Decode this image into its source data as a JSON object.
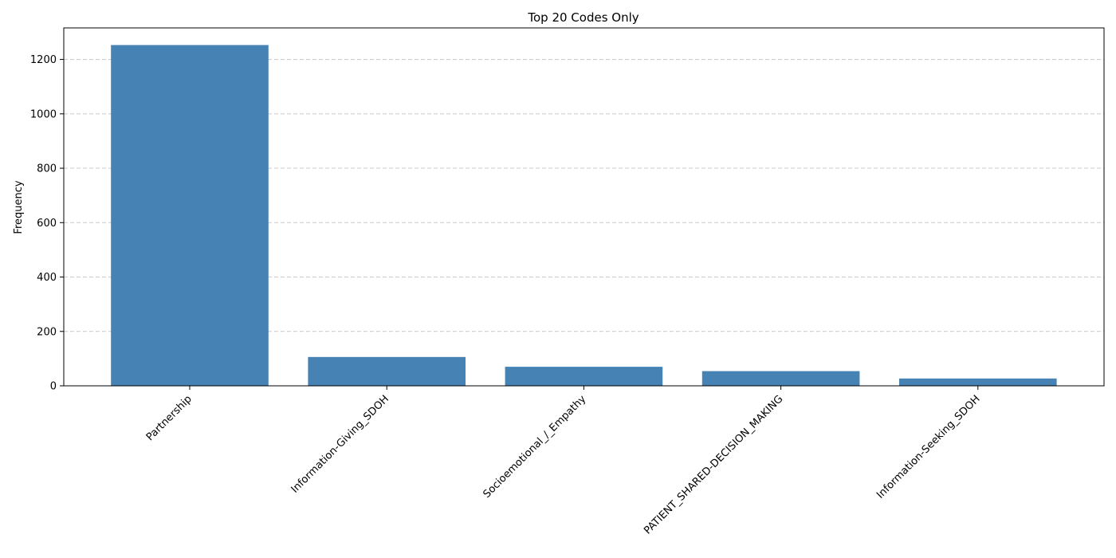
{
  "chart_data": {
    "type": "bar",
    "title": "Top 20 Codes Only",
    "xlabel": "",
    "ylabel": "Frequency",
    "categories": [
      "Partnership",
      "Information-Giving_SDOH",
      "Socioemotional_/_Empathy",
      "PATIENT_SHARED-DECISION_MAKING",
      "Information-Seeking_SDOH"
    ],
    "values": [
      1253,
      106,
      70,
      54,
      27
    ],
    "ylim": [
      0,
      1316
    ],
    "yticks": [
      0,
      200,
      400,
      600,
      800,
      1000,
      1200
    ],
    "grid": "horizontal-dashed",
    "bar_color": "#4682b4",
    "grid_color": "#c8c8c8"
  }
}
